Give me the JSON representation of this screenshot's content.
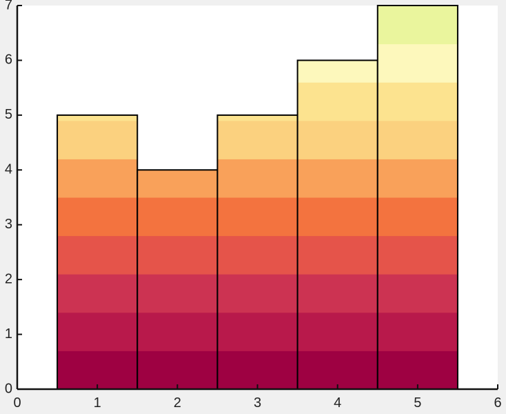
{
  "chart_data": {
    "type": "bar",
    "style": "stacked color-banded bars (colormap bands every 0.7 units)",
    "title": "",
    "xlabel": "",
    "ylabel": "",
    "categories": [
      1,
      2,
      3,
      4,
      5
    ],
    "values": [
      5,
      4,
      5,
      6,
      7
    ],
    "xlim": [
      0,
      6
    ],
    "ylim": [
      0,
      7
    ],
    "xticks": [
      "0",
      "1",
      "2",
      "3",
      "4",
      "5",
      "6"
    ],
    "yticks": [
      "0",
      "1",
      "2",
      "3",
      "4",
      "5",
      "6",
      "7"
    ],
    "grid": false,
    "legend": "none",
    "band_step": 0.7,
    "band_colors": [
      "#9e0142",
      "#b8194b",
      "#cc3352",
      "#e5544a",
      "#f3733f",
      "#f9a15a",
      "#fbd17f",
      "#fce38f",
      "#fdf8bc",
      "#eaf59d"
    ],
    "colors": {
      "background": "#f0f0f0",
      "plot_area": "#ffffff",
      "axis": "#111111",
      "bar_edge": "#000000"
    }
  }
}
